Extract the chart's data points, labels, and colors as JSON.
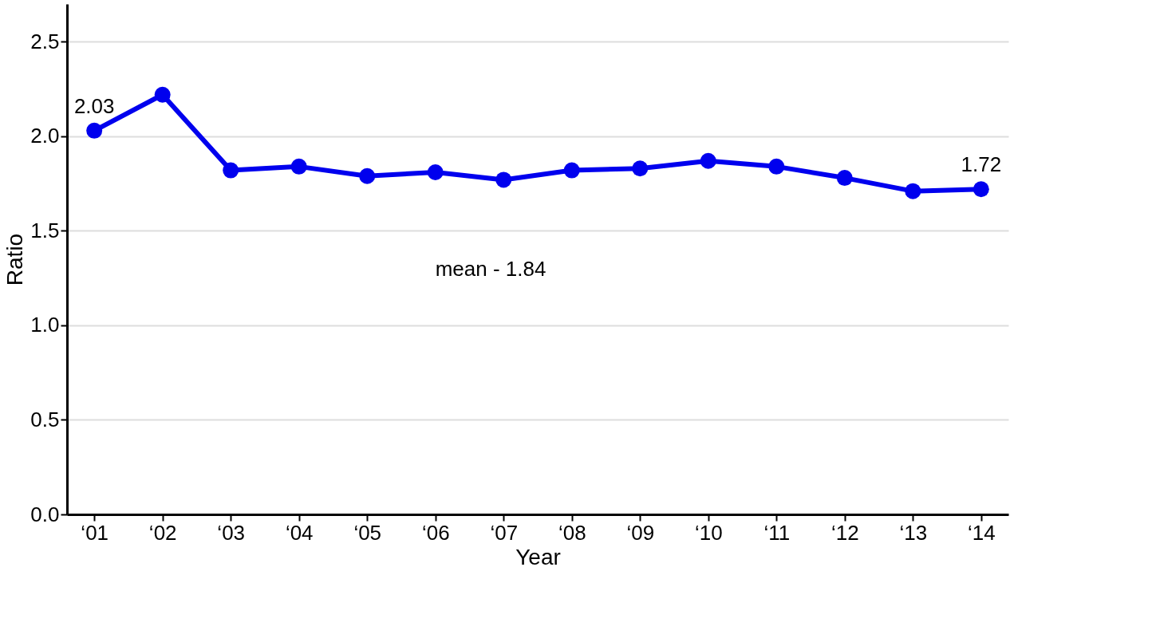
{
  "chart_data": {
    "type": "line",
    "xlabel": "Year",
    "ylabel": "Ratio",
    "categories": [
      "‘01",
      "‘02",
      "‘03",
      "‘04",
      "‘05",
      "‘06",
      "‘07",
      "‘08",
      "‘09",
      "‘10",
      "‘11",
      "‘12",
      "‘13",
      "‘14"
    ],
    "series": [
      {
        "color": "#0000ee",
        "values": [
          2.03,
          2.22,
          1.82,
          1.84,
          1.79,
          1.81,
          1.77,
          1.82,
          1.83,
          1.87,
          1.84,
          1.78,
          1.71,
          1.72
        ],
        "value_labels": [
          "2.03",
          null,
          null,
          null,
          null,
          null,
          null,
          null,
          null,
          null,
          null,
          null,
          null,
          "1.72"
        ]
      }
    ],
    "ylim": [
      0,
      2.7
    ],
    "yticks": [
      {
        "value": 0,
        "label": "0.0"
      },
      0.5,
      {
        "value": 1,
        "label": "1.0"
      },
      1.5,
      {
        "value": 2,
        "label": "2.0"
      },
      2.5
    ],
    "grid": "y",
    "marker": "circle",
    "line_style": "solid",
    "annotations": [
      "mean - 1.84"
    ]
  }
}
